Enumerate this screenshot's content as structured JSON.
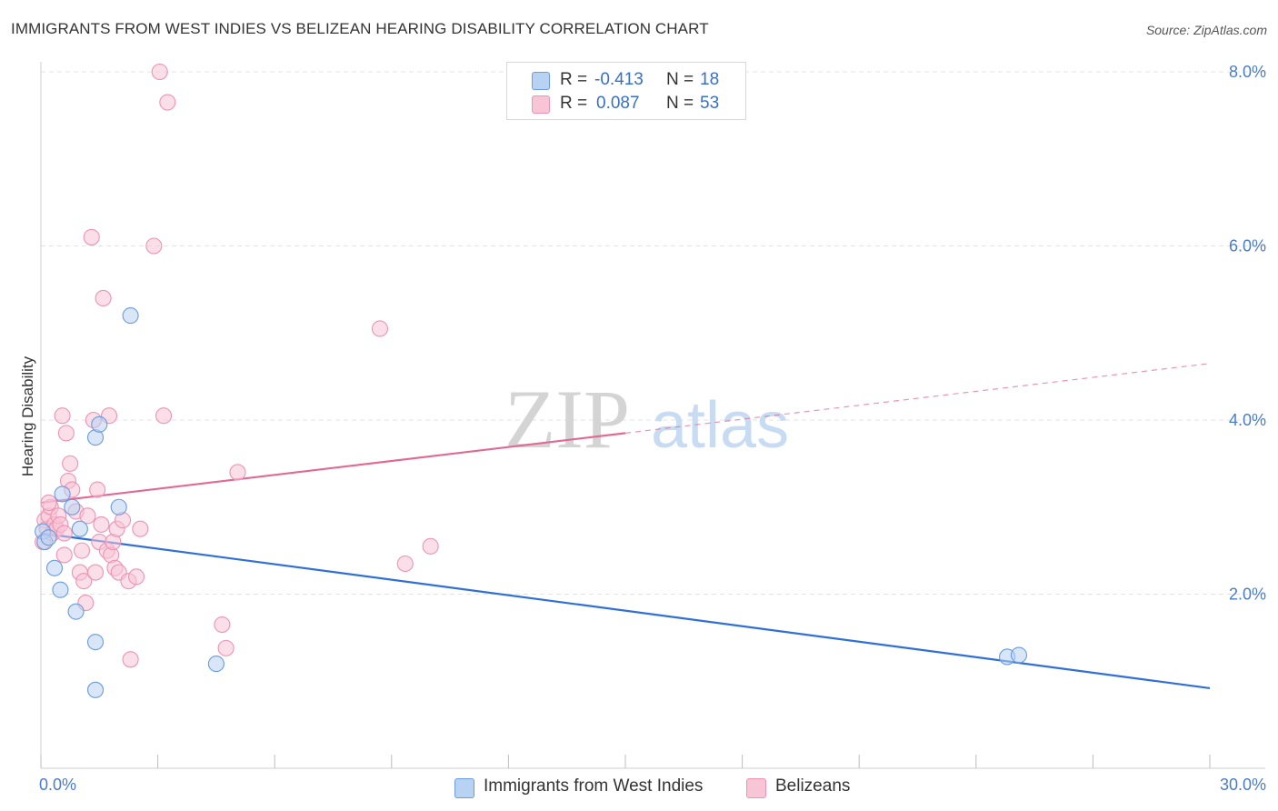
{
  "header": {
    "title": "IMMIGRANTS FROM WEST INDIES VS BELIZEAN HEARING DISABILITY CORRELATION CHART",
    "source": "Source: ZipAtlas.com"
  },
  "watermark": {
    "zip": "ZIP",
    "atlas": "atlas"
  },
  "colors": {
    "blue_fill": "#b8d2f3",
    "blue_stroke": "#6b9be0",
    "blue_line": "#2f6fd6",
    "pink_fill": "#f8c5d6",
    "pink_stroke": "#ee93b2",
    "pink_line": "#e06a93",
    "tick_text": "#4a7cc9",
    "grid": "#e3e3e3"
  },
  "legend": {
    "series": [
      {
        "r_label": "R =",
        "r_value": "-0.413",
        "n_label": "N =",
        "n_value": "18"
      },
      {
        "r_label": "R =",
        "r_value": "0.087",
        "n_label": "N =",
        "n_value": "53"
      }
    ]
  },
  "bottom_legend": {
    "items": [
      {
        "label": "Immigrants from West Indies"
      },
      {
        "label": "Belizeans"
      }
    ]
  },
  "chart_data": {
    "type": "scatter",
    "title": "IMMIGRANTS FROM WEST INDIES VS BELIZEAN HEARING DISABILITY CORRELATION CHART",
    "xlabel": "",
    "ylabel": "Hearing Disability",
    "xlim": [
      0,
      30
    ],
    "ylim": [
      0,
      8
    ],
    "x_tick_labels": [
      "0.0%",
      "30.0%"
    ],
    "y_ticks": [
      2,
      4,
      6,
      8
    ],
    "y_tick_labels": [
      "2.0%",
      "4.0%",
      "6.0%",
      "8.0%"
    ],
    "grid": true,
    "series": [
      {
        "name": "Immigrants from West Indies",
        "color": "#6b9be0",
        "r": -0.413,
        "n": 18,
        "trend": {
          "x0": 0,
          "y0": 2.7,
          "x1": 30,
          "y1": 0.92,
          "solid_to": 30
        },
        "points": [
          [
            0.05,
            2.72
          ],
          [
            0.1,
            2.6
          ],
          [
            0.2,
            2.65
          ],
          [
            0.35,
            2.3
          ],
          [
            0.5,
            2.05
          ],
          [
            0.55,
            3.15
          ],
          [
            0.8,
            3.0
          ],
          [
            0.9,
            1.8
          ],
          [
            1.0,
            2.75
          ],
          [
            1.4,
            1.45
          ],
          [
            1.4,
            0.9
          ],
          [
            1.4,
            3.8
          ],
          [
            1.5,
            3.95
          ],
          [
            2.0,
            3.0
          ],
          [
            2.3,
            5.2
          ],
          [
            4.5,
            1.2
          ],
          [
            24.8,
            1.28
          ],
          [
            25.1,
            1.3
          ]
        ]
      },
      {
        "name": "Belizeans",
        "color": "#ee93b2",
        "r": 0.087,
        "n": 53,
        "trend": {
          "x0": 0,
          "y0": 3.05,
          "x1": 30,
          "y1": 4.65,
          "solid_to": 15
        },
        "points": [
          [
            0.05,
            2.6
          ],
          [
            0.1,
            2.85
          ],
          [
            0.15,
            2.75
          ],
          [
            0.2,
            2.9
          ],
          [
            0.25,
            3.0
          ],
          [
            0.3,
            2.7
          ],
          [
            0.35,
            2.8
          ],
          [
            0.4,
            2.75
          ],
          [
            0.45,
            2.9
          ],
          [
            0.5,
            2.8
          ],
          [
            0.55,
            4.05
          ],
          [
            0.6,
            2.45
          ],
          [
            0.65,
            3.85
          ],
          [
            0.7,
            3.3
          ],
          [
            0.75,
            3.5
          ],
          [
            0.8,
            3.2
          ],
          [
            0.9,
            2.95
          ],
          [
            1.0,
            2.25
          ],
          [
            1.05,
            2.5
          ],
          [
            1.1,
            2.15
          ],
          [
            1.15,
            1.9
          ],
          [
            1.2,
            2.9
          ],
          [
            1.3,
            6.1
          ],
          [
            1.35,
            4.0
          ],
          [
            1.4,
            2.25
          ],
          [
            1.45,
            3.2
          ],
          [
            1.5,
            2.6
          ],
          [
            1.55,
            2.8
          ],
          [
            1.6,
            5.4
          ],
          [
            1.7,
            2.5
          ],
          [
            1.75,
            4.05
          ],
          [
            1.8,
            2.45
          ],
          [
            1.85,
            2.6
          ],
          [
            1.9,
            2.3
          ],
          [
            1.95,
            2.75
          ],
          [
            2.0,
            2.25
          ],
          [
            2.1,
            2.85
          ],
          [
            2.25,
            2.15
          ],
          [
            2.3,
            1.25
          ],
          [
            2.45,
            2.2
          ],
          [
            2.55,
            2.75
          ],
          [
            2.9,
            6.0
          ],
          [
            3.05,
            8.0
          ],
          [
            3.15,
            4.05
          ],
          [
            3.25,
            7.65
          ],
          [
            4.65,
            1.65
          ],
          [
            4.75,
            1.38
          ],
          [
            5.05,
            3.4
          ],
          [
            8.7,
            5.05
          ],
          [
            9.35,
            2.35
          ],
          [
            10.0,
            2.55
          ],
          [
            0.2,
            3.05
          ],
          [
            0.6,
            2.7
          ]
        ]
      }
    ]
  }
}
